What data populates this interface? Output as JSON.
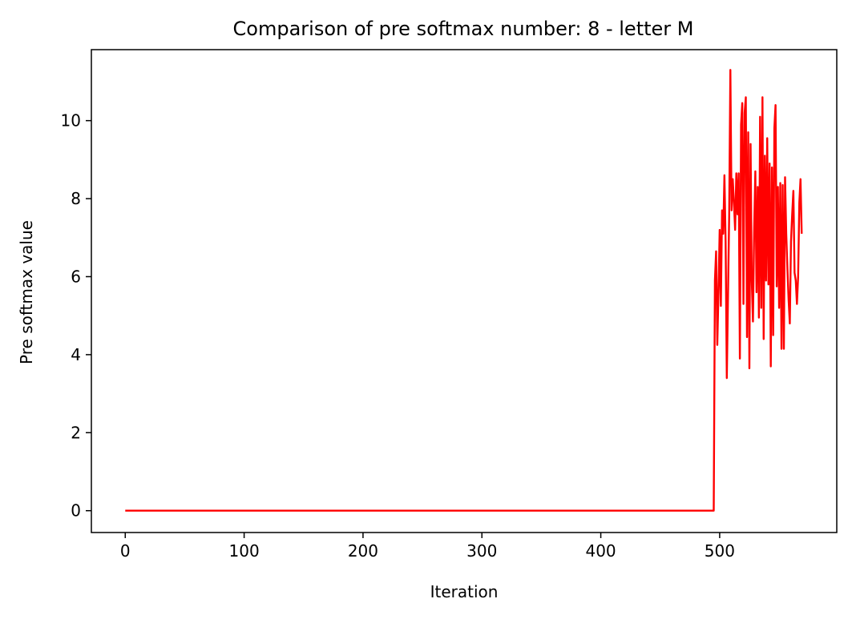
{
  "chart_data": {
    "type": "line",
    "title": "Comparison of pre softmax number: 8 - letter M",
    "xlabel": "Iteration",
    "ylabel": "Pre softmax value",
    "xlim": [
      -28.5,
      598.5
    ],
    "ylim": [
      -0.56,
      11.82
    ],
    "xticks": [
      0,
      100,
      200,
      300,
      400,
      500
    ],
    "yticks": [
      0,
      2,
      4,
      6,
      8,
      10
    ],
    "grid": false,
    "series": [
      {
        "color": "#ff0000",
        "x": [
          0,
          100,
          200,
          300,
          400,
          495,
          496,
          497,
          498,
          499,
          500,
          501,
          502,
          503,
          504,
          505,
          506,
          507,
          508,
          509,
          510,
          511,
          512,
          513,
          514,
          515,
          516,
          517,
          518,
          519,
          520,
          521,
          522,
          523,
          524,
          525,
          526,
          527,
          528,
          529,
          530,
          531,
          532,
          533,
          534,
          535,
          536,
          537,
          538,
          539,
          540,
          541,
          542,
          543,
          544,
          545,
          546,
          547,
          548,
          549,
          550,
          551,
          552,
          553,
          554,
          555,
          556,
          557,
          558,
          559,
          560,
          561,
          562,
          563,
          564,
          565,
          566,
          567,
          568,
          569
        ],
        "y": [
          0,
          0,
          0,
          0,
          0,
          0,
          5.9,
          6.65,
          4.25,
          5.6,
          7.2,
          5.25,
          7.7,
          7.1,
          8.6,
          6.9,
          3.4,
          5.5,
          7.6,
          11.3,
          7.7,
          8.5,
          7.9,
          7.2,
          8.65,
          7.6,
          8.65,
          3.9,
          9.9,
          10.45,
          5.3,
          10.2,
          10.6,
          4.45,
          9.7,
          3.65,
          9.4,
          5.9,
          4.85,
          7.2,
          8.7,
          5.6,
          8.3,
          4.95,
          10.1,
          5.2,
          10.6,
          4.4,
          9.1,
          5.9,
          9.55,
          5.8,
          8.9,
          3.7,
          8.8,
          4.5,
          9.8,
          10.4,
          5.75,
          8.3,
          5.2,
          8.4,
          4.15,
          8.35,
          4.15,
          8.55,
          7.1,
          6.2,
          5.4,
          4.8,
          6.9,
          7.6,
          8.2,
          6.1,
          5.9,
          5.3,
          6.0,
          7.9,
          8.5,
          7.1
        ]
      }
    ]
  }
}
